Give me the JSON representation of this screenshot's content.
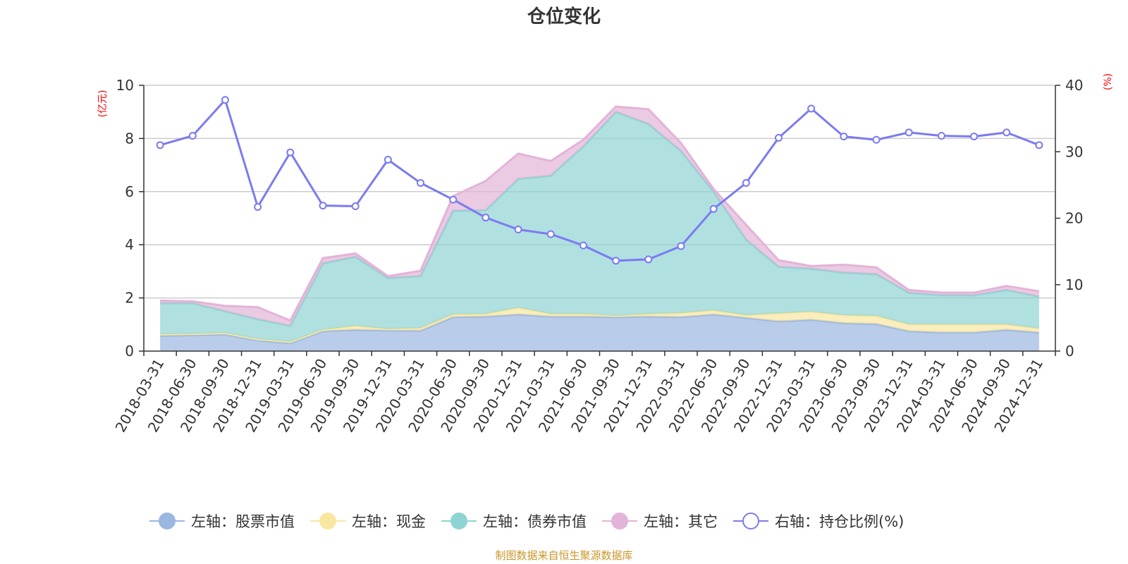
{
  "chart_data": {
    "type": "area",
    "title": "仓位变化",
    "source_note": "制图数据来自恒生聚源数据库",
    "left_axis": {
      "unit": "(亿元)",
      "min": 0,
      "max": 10,
      "ticks": [
        "0",
        "2",
        "4",
        "6",
        "8",
        "10"
      ]
    },
    "right_axis": {
      "unit": "(%)",
      "min": 0,
      "max": 40,
      "ticks": [
        "0",
        "10",
        "20",
        "30",
        "40"
      ]
    },
    "categories": [
      "2018-03-31",
      "2018-06-30",
      "2018-09-30",
      "2018-12-31",
      "2019-03-31",
      "2019-06-30",
      "2019-09-30",
      "2019-12-31",
      "2020-03-31",
      "2020-06-30",
      "2020-09-30",
      "2020-12-31",
      "2021-03-31",
      "2021-06-30",
      "2021-09-30",
      "2021-12-31",
      "2022-03-31",
      "2022-06-30",
      "2022-09-30",
      "2022-12-31",
      "2023-03-31",
      "2023-06-30",
      "2023-09-30",
      "2023-12-31",
      "2024-03-31",
      "2024-06-30",
      "2024-09-30",
      "2024-12-31"
    ],
    "stacked_series": [
      {
        "name": "左轴：股票市值",
        "axis": "left",
        "color": "#9bb6e0",
        "values": [
          0.58,
          0.6,
          0.63,
          0.4,
          0.3,
          0.75,
          0.8,
          0.78,
          0.77,
          1.28,
          1.3,
          1.38,
          1.3,
          1.3,
          1.28,
          1.3,
          1.28,
          1.38,
          1.25,
          1.12,
          1.18,
          1.05,
          1.02,
          0.75,
          0.7,
          0.7,
          0.8,
          0.7
        ]
      },
      {
        "name": "左轴：现金",
        "axis": "left",
        "color": "#f9e7a1",
        "values": [
          0.05,
          0.05,
          0.05,
          0.05,
          0.05,
          0.05,
          0.15,
          0.05,
          0.1,
          0.1,
          0.1,
          0.25,
          0.1,
          0.1,
          0.05,
          0.1,
          0.15,
          0.15,
          0.1,
          0.3,
          0.3,
          0.3,
          0.3,
          0.25,
          0.3,
          0.3,
          0.2,
          0.15
        ]
      },
      {
        "name": "左轴：债券市值",
        "axis": "left",
        "color": "#8fd3d3",
        "values": [
          1.17,
          1.15,
          0.82,
          0.75,
          0.6,
          2.5,
          2.6,
          1.92,
          1.95,
          3.9,
          3.9,
          4.85,
          5.2,
          6.3,
          7.67,
          7.15,
          6.1,
          4.47,
          2.85,
          1.75,
          1.62,
          1.6,
          1.58,
          1.2,
          1.1,
          1.1,
          1.3,
          1.2
        ]
      },
      {
        "name": "左轴：其它",
        "axis": "left",
        "color": "#e3b3d8",
        "values": [
          0.1,
          0.07,
          0.2,
          0.45,
          0.2,
          0.2,
          0.12,
          0.07,
          0.2,
          0.55,
          1.1,
          0.95,
          0.55,
          0.25,
          0.2,
          0.55,
          0.3,
          0.1,
          0.55,
          0.25,
          0.1,
          0.3,
          0.25,
          0.1,
          0.1,
          0.1,
          0.15,
          0.2
        ]
      }
    ],
    "line_series": {
      "name": "右轴：持仓比例(%)",
      "axis": "right",
      "color": "#7b7bf0",
      "values": [
        31,
        32.4,
        37.8,
        21.7,
        29.9,
        21.9,
        21.8,
        28.8,
        25.3,
        22.8,
        20.1,
        18.3,
        17.6,
        15.9,
        13.6,
        13.8,
        15.8,
        21.4,
        25.3,
        32.1,
        36.5,
        32.3,
        31.8,
        32.9,
        32.4,
        32.3,
        32.9,
        31
      ]
    },
    "legend": [
      {
        "label": "左轴：股票市值",
        "color": "#9bb6e0",
        "style": "filled"
      },
      {
        "label": "左轴：现金",
        "color": "#f9e7a1",
        "style": "filled"
      },
      {
        "label": "左轴：债券市值",
        "color": "#8fd3d3",
        "style": "filled"
      },
      {
        "label": "左轴：其它",
        "color": "#e3b3d8",
        "style": "filled"
      },
      {
        "label": "右轴：持仓比例(%)",
        "color": "#7b7bf0",
        "style": "hollow"
      }
    ]
  }
}
